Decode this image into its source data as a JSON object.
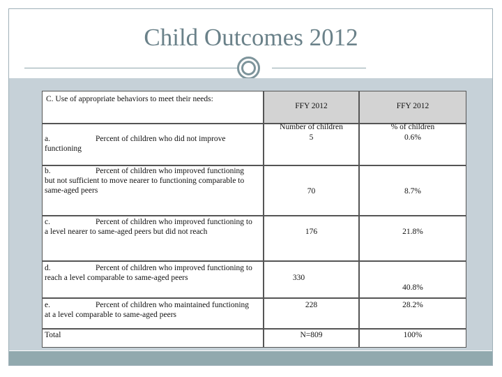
{
  "slide": {
    "title": "Child Outcomes 2012"
  },
  "table": {
    "header": {
      "question": "C.  Use of appropriate behaviors to meet their needs:",
      "col1_year": "FFY 2012",
      "col2_year": "FFY 2012",
      "col1_sub": "Number of children",
      "col2_sub": "% of children"
    },
    "rows": [
      {
        "letter": "a.",
        "lines": [
          "Percent of children who did not improve",
          "functioning"
        ],
        "number": "5",
        "percent": "0.6%"
      },
      {
        "letter": "b.",
        "lines": [
          "Percent of children who improved functioning",
          "but not sufficient to move nearer to functioning comparable to",
          "same-aged peers"
        ],
        "number": "70",
        "percent": "8.7%"
      },
      {
        "letter": "c.",
        "lines": [
          "Percent of children who improved functioning to",
          "a level nearer to same-aged peers but did not reach"
        ],
        "number": "176",
        "percent": "21.8%"
      },
      {
        "letter": "d.",
        "lines": [
          "Percent of children who improved functioning to",
          "reach a level comparable to same-aged peers"
        ],
        "number": "330",
        "percent": "40.8%"
      },
      {
        "letter": "e.",
        "lines": [
          "Percent of children who maintained functioning",
          "at a level comparable to same-aged peers"
        ],
        "number": "228",
        "percent": "28.2%"
      }
    ],
    "total": {
      "label": "Total",
      "number": "N=809",
      "percent": "100%"
    }
  }
}
